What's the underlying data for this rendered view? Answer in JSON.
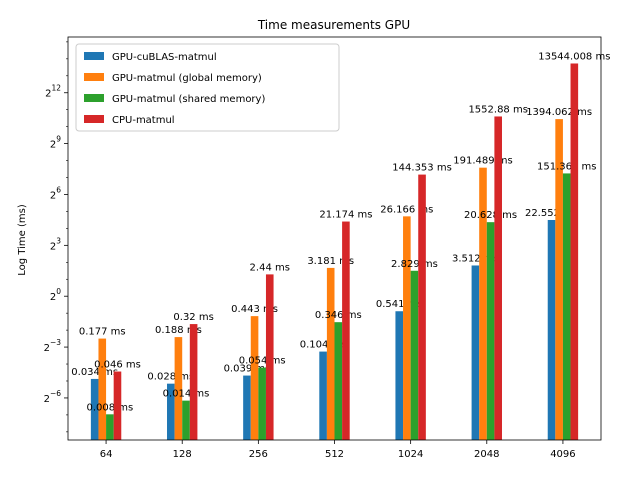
{
  "chart_data": {
    "type": "bar",
    "title": "Time measurements GPU",
    "xlabel": "",
    "ylabel": "Log Time (ms)",
    "yscale": "log2",
    "yticks": [
      {
        "exp": "−6",
        "value": 0.015625
      },
      {
        "exp": "−3",
        "value": 0.125
      },
      {
        "exp": "0",
        "value": 1
      },
      {
        "exp": "3",
        "value": 8
      },
      {
        "exp": "6",
        "value": 64
      },
      {
        "exp": "9",
        "value": 512
      },
      {
        "exp": "12",
        "value": 4096
      }
    ],
    "tick_base": "2",
    "ylim": [
      0.0028,
      40000
    ],
    "grid": false,
    "legend_position": "top-left",
    "categories": [
      "64",
      "128",
      "256",
      "512",
      "1024",
      "2048",
      "4096"
    ],
    "series": [
      {
        "name": "GPU-cuBLAS-matmul",
        "color": "#1f77b4",
        "values": [
          0.034,
          0.028,
          0.039,
          0.104,
          0.541,
          3.512,
          22.552
        ],
        "labels": [
          "0.034 ms",
          "0.028 ms",
          "0.039 ms",
          "0.104 ms",
          "0.541 ms",
          "3.512 ms",
          "22.552 ms"
        ]
      },
      {
        "name": "GPU-matmul (global memory)",
        "color": "#ff7f0e",
        "values": [
          0.177,
          0.188,
          0.443,
          3.181,
          26.166,
          191.489,
          1394.062
        ],
        "labels": [
          "0.177 ms",
          "0.188 ms",
          "0.443 ms",
          "3.181 ms",
          "26.166 ms",
          "191.489 ms",
          "1394.062 ms"
        ]
      },
      {
        "name": "GPU-matmul (shared memory)",
        "color": "#2ca02c",
        "values": [
          0.008,
          0.014,
          0.054,
          0.346,
          2.829,
          20.628,
          151.366
        ],
        "labels": [
          "0.008 ms",
          "0.014 ms",
          "0.054 ms",
          "0.346 ms",
          "2.829 ms",
          "20.628 ms",
          "151.366 ms"
        ]
      },
      {
        "name": "CPU-matmul",
        "color": "#d62728",
        "values": [
          0.046,
          0.32,
          2.44,
          21.174,
          144.353,
          1552.88,
          13544.008
        ],
        "labels": [
          "0.046 ms",
          "0.32 ms",
          "2.44 ms",
          "21.174 ms",
          "144.353 ms",
          "1552.88 ms",
          "13544.008 ms"
        ]
      }
    ]
  }
}
